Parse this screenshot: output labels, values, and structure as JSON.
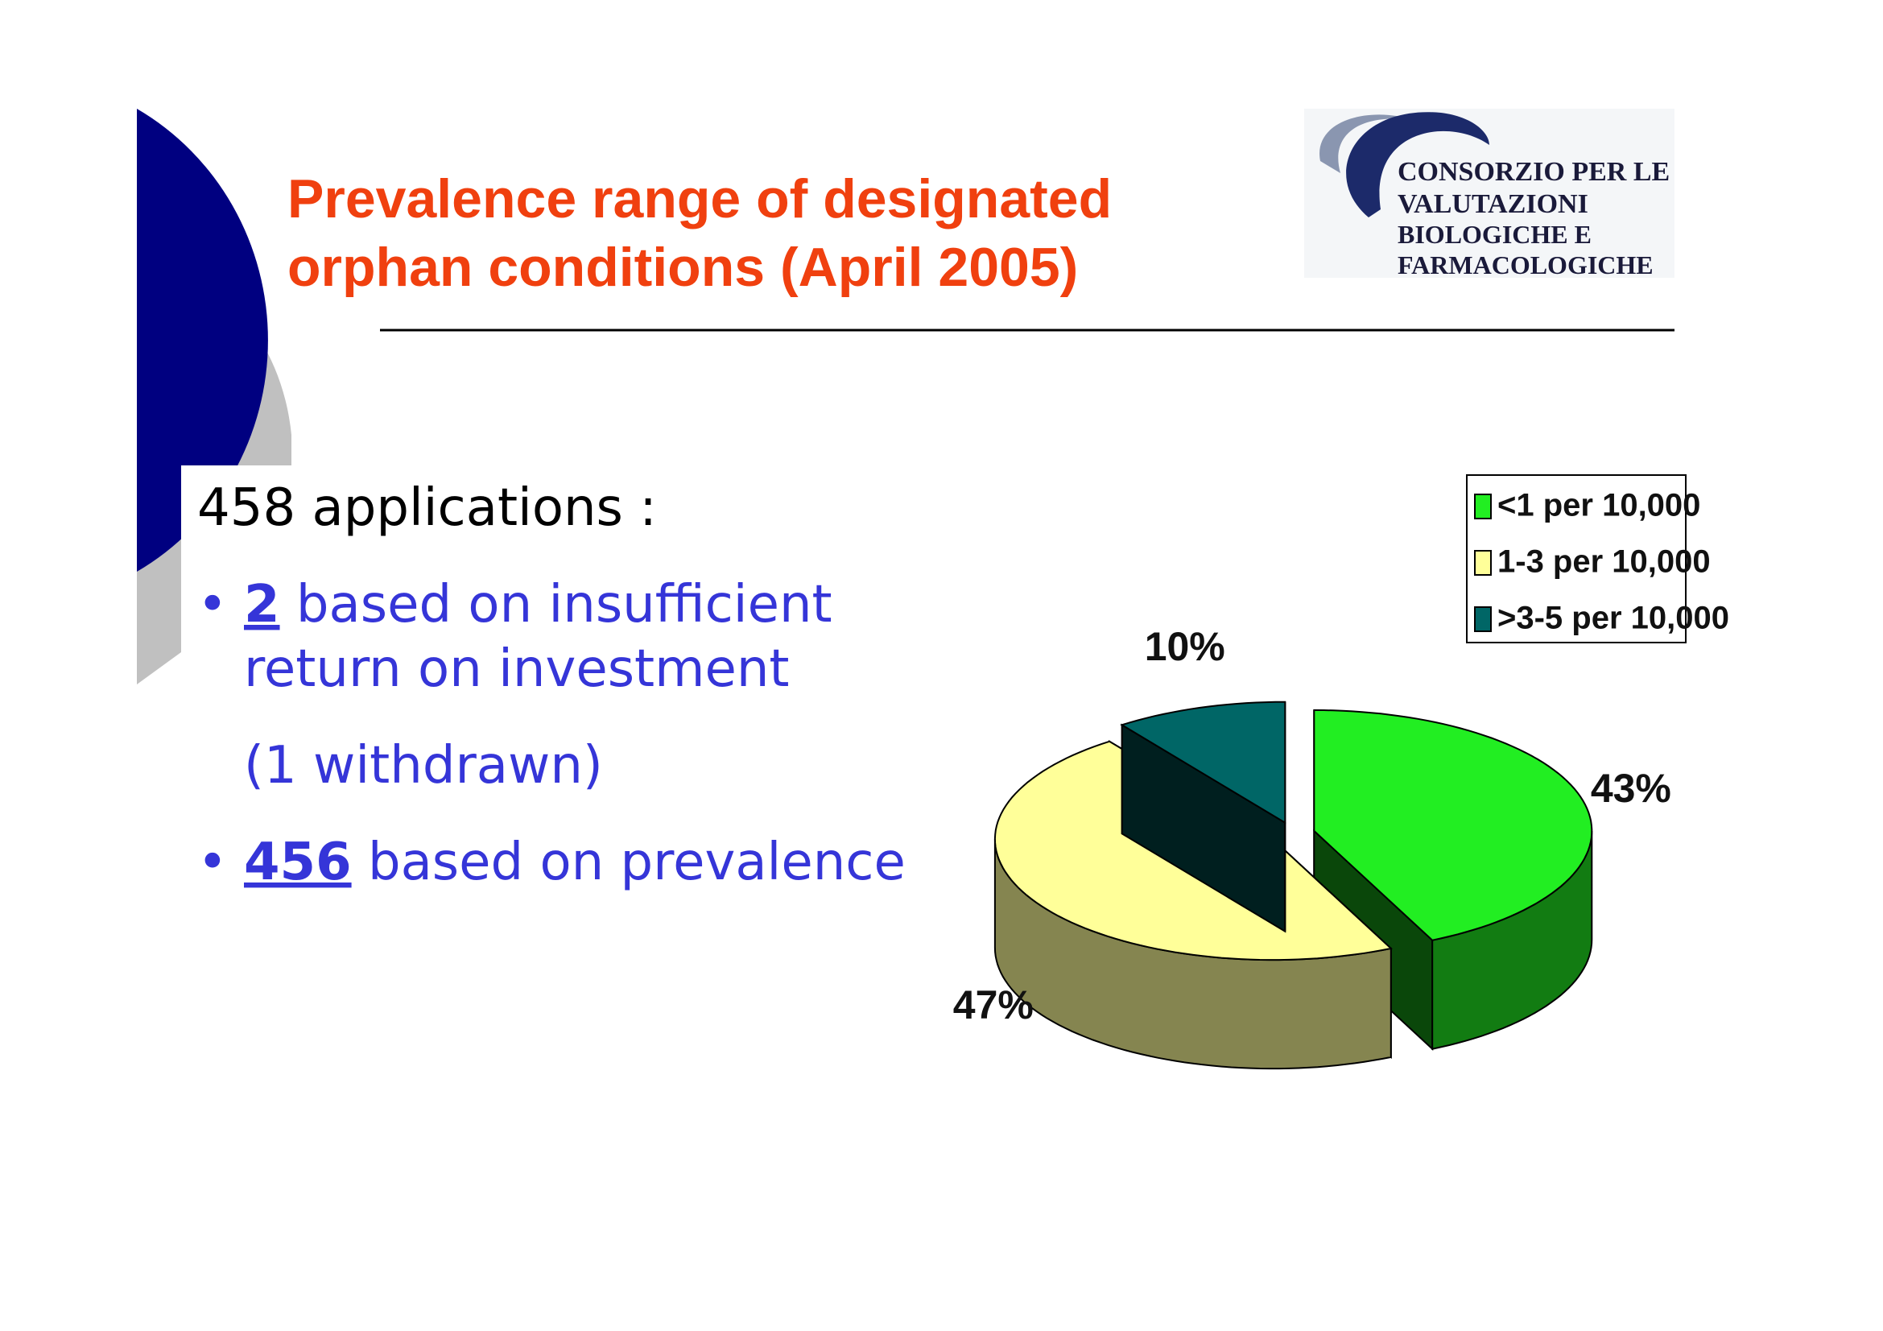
{
  "title_lines": [
    "Prevalence range of designated",
    "orphan conditions (April 2005)"
  ],
  "logo_lines": [
    "CONSORZIO PER LE",
    "VALUTAZIONI",
    "BIOLOGICHE E",
    "FARMACOLOGICHE"
  ],
  "intro": "458 applications :",
  "bullets": [
    {
      "number": "2",
      "text": " based on insufficient",
      "continuation": "return on investment",
      "note": "(1 withdrawn)"
    },
    {
      "number": "456",
      "text": " based on prevalence"
    }
  ],
  "chart_data": {
    "type": "pie",
    "categories": [
      "<1 per 10,000",
      "1-3 per 10,000",
      ">3-5 per 10,000"
    ],
    "values": [
      43,
      47,
      10
    ],
    "value_labels": [
      "43%",
      "47%",
      "10%"
    ],
    "colors": [
      "#22ee22",
      "#ffff99",
      "#006666"
    ],
    "legend": "top-right"
  }
}
